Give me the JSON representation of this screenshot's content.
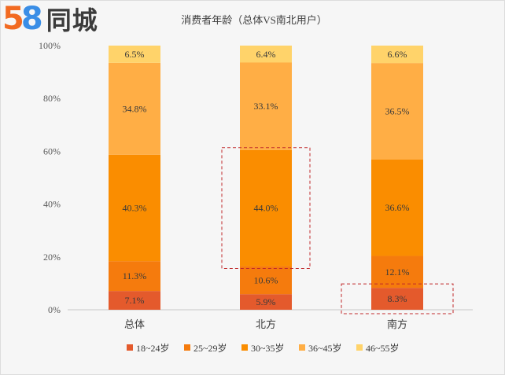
{
  "logo": {
    "digit_a": "5",
    "digit_b": "8",
    "brand": "同城"
  },
  "chart_data": {
    "type": "bar",
    "stacked": true,
    "title": "消费者年龄（总体VS南北用户）",
    "categories": [
      "总体",
      "北方",
      "南方"
    ],
    "ylim": [
      0,
      100
    ],
    "y_ticks": [
      "0%",
      "20%",
      "40%",
      "60%",
      "80%",
      "100%"
    ],
    "legend_position": "bottom",
    "grid": false,
    "highlight_boxes": [
      "北方 30~35岁",
      "南方 18~24岁"
    ],
    "series": [
      {
        "name": "18~24岁",
        "color": "#e45a2c",
        "values": [
          7.1,
          5.9,
          8.3
        ],
        "labels": [
          "7.1%",
          "5.9%",
          "8.3%"
        ]
      },
      {
        "name": "25~29岁",
        "color": "#f57b0d",
        "values": [
          11.3,
          10.6,
          12.1
        ],
        "labels": [
          "11.3%",
          "10.6%",
          "12.1%"
        ]
      },
      {
        "name": "30~35岁",
        "color": "#fa8d00",
        "values": [
          40.3,
          44.0,
          36.6
        ],
        "labels": [
          "40.3%",
          "44.0%",
          "36.6%"
        ]
      },
      {
        "name": "36~45岁",
        "color": "#ffae45",
        "values": [
          34.8,
          33.1,
          36.5
        ],
        "labels": [
          "34.8%",
          "33.1%",
          "36.5%"
        ]
      },
      {
        "name": "46~55岁",
        "color": "#ffd36a",
        "values": [
          6.5,
          6.4,
          6.6
        ],
        "labels": [
          "6.5%",
          "6.4%",
          "6.6%"
        ]
      }
    ]
  }
}
